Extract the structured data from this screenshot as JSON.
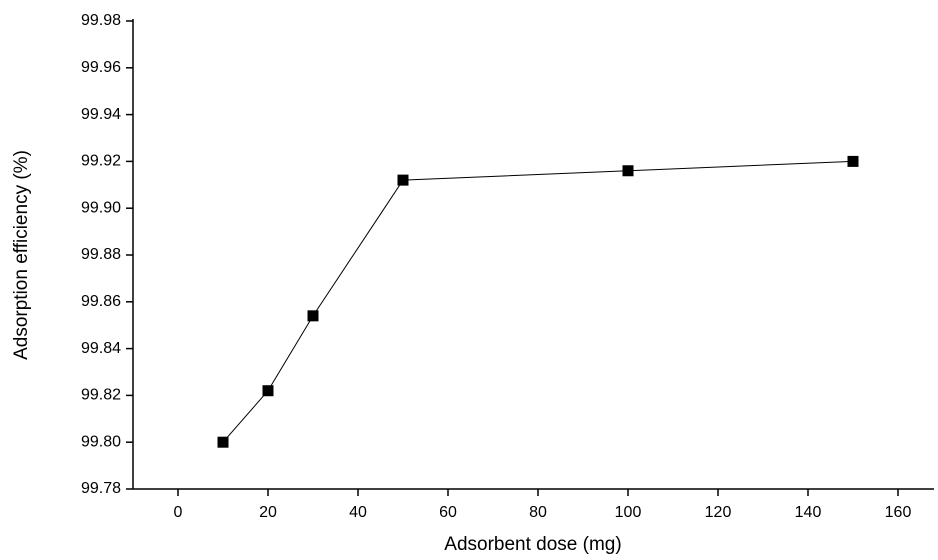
{
  "chart_data": {
    "type": "line",
    "x_label": "Adsorbent dose (mg)",
    "y_label": "Adsorption efficiency (%)",
    "x": [
      10,
      20,
      30,
      50,
      100,
      150
    ],
    "series": [
      {
        "color": "#000000",
        "values": [
          99.8,
          99.822,
          99.854,
          99.912,
          99.916,
          99.92
        ]
      }
    ],
    "xlim": [
      -10,
      168
    ],
    "xticks": [
      0,
      20,
      40,
      60,
      80,
      100,
      120,
      140,
      160
    ],
    "ylim": [
      99.78,
      99.98
    ],
    "yticks": [
      99.78,
      {
        "value": 99.8,
        "label": "99.80"
      },
      99.82,
      99.84,
      99.86,
      99.88,
      {
        "value": 99.9,
        "label": "99.90"
      },
      99.92,
      99.94,
      99.96,
      99.98
    ],
    "grid": false,
    "marker": "square"
  }
}
